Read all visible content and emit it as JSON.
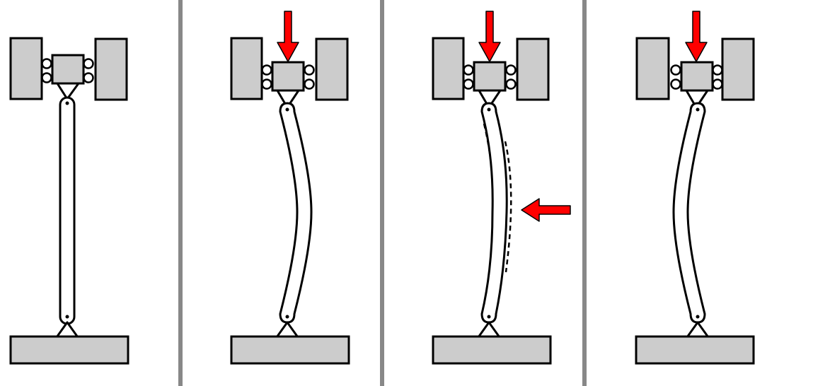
{
  "colors": {
    "background": "#ffffff",
    "block_fill": "#cccccc",
    "outline": "#000000",
    "arrow": "#ff0000",
    "divider": "#888888"
  },
  "panels": [
    {
      "id": "panel-1-unloaded",
      "state": "straight",
      "axial_load": false,
      "lateral_load": false,
      "dashed_outline": false
    },
    {
      "id": "panel-2-buckled",
      "state": "bent-right",
      "axial_load": true,
      "lateral_load": false,
      "dashed_outline": false
    },
    {
      "id": "panel-3-lateral-push",
      "state": "bent-right",
      "axial_load": true,
      "lateral_load": true,
      "dashed_outline": true
    },
    {
      "id": "panel-4-buckled-left",
      "state": "bent-left",
      "axial_load": true,
      "lateral_load": false,
      "dashed_outline": false
    }
  ]
}
